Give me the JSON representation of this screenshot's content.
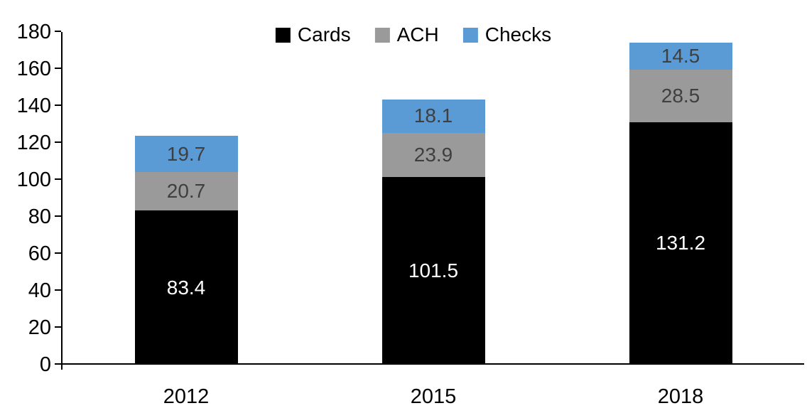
{
  "chart_data": {
    "type": "bar",
    "stacked": true,
    "title": "",
    "xlabel": "",
    "ylabel": "",
    "categories": [
      "2012",
      "2015",
      "2018"
    ],
    "series": [
      {
        "name": "Cards",
        "color": "#000000",
        "label_color": "#ffffff",
        "values": [
          83.4,
          101.5,
          131.2
        ]
      },
      {
        "name": "ACH",
        "color": "#9A9A9A",
        "label_color": "#3f3f3f",
        "values": [
          20.7,
          23.9,
          28.5
        ]
      },
      {
        "name": "Checks",
        "color": "#5B9BD5",
        "label_color": "#3f3f3f",
        "values": [
          19.7,
          18.1,
          14.5
        ]
      }
    ],
    "totals": [
      123.8,
      143.5,
      174.2
    ],
    "ylim": [
      0,
      180
    ],
    "ytick_step": 20,
    "ytick_labels": [
      "0",
      "20",
      "40",
      "60",
      "80",
      "100",
      "120",
      "140",
      "160",
      "180"
    ],
    "legend_position": "top-center",
    "legend_entries": [
      "Cards",
      "ACH",
      "Checks"
    ],
    "grid": false,
    "axis_color": "#000000"
  }
}
